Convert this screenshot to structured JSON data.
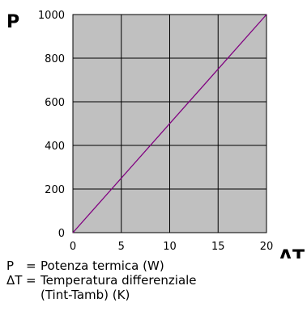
{
  "chart_data": {
    "type": "line",
    "x_axis_label": "ΔT",
    "y_axis_label": "P",
    "xlim": [
      0,
      20
    ],
    "ylim": [
      0,
      1000
    ],
    "x_ticks": [
      "0",
      "5",
      "10",
      "15",
      "20"
    ],
    "y_ticks": [
      "0",
      "200",
      "400",
      "600",
      "800",
      "1000"
    ],
    "grid": true,
    "background_color": "#c0c0c0",
    "grid_color": "#000000",
    "series": [
      {
        "color": "#800080",
        "x": [
          0,
          20
        ],
        "y": [
          0,
          1000
        ]
      }
    ]
  },
  "legend": [
    {
      "symbol": "P",
      "eq": "=",
      "text": "Potenza termica (W)"
    },
    {
      "symbol": "ΔT",
      "eq": "=",
      "text": "Temperatura differenziale"
    },
    {
      "symbol": "",
      "eq": "",
      "text": "(Tint-Tamb) (K)"
    }
  ]
}
